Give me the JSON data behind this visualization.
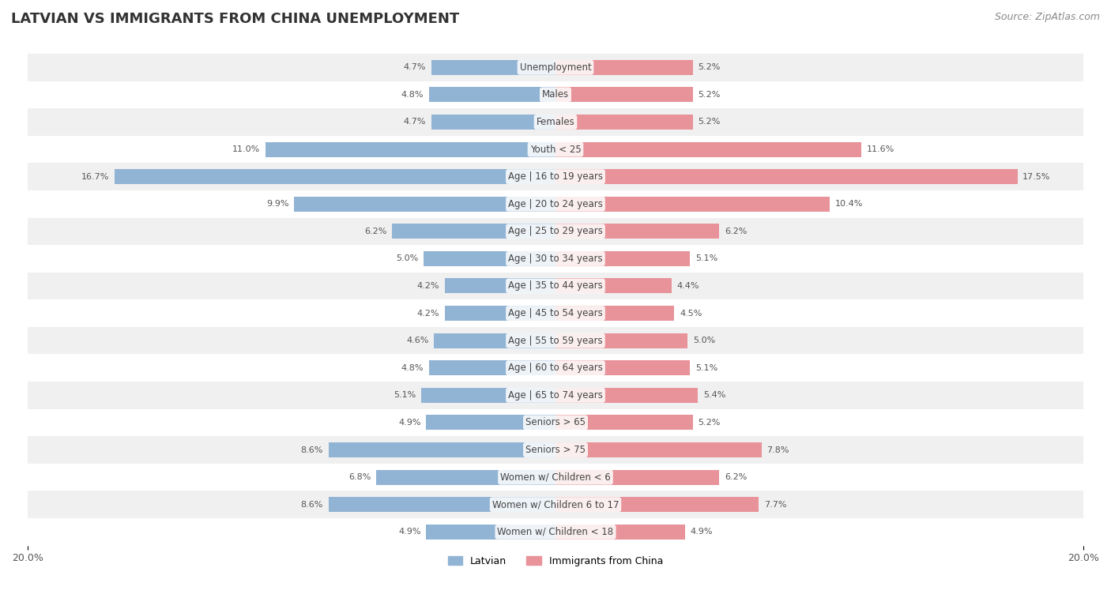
{
  "title": "LATVIAN VS IMMIGRANTS FROM CHINA UNEMPLOYMENT",
  "source": "Source: ZipAtlas.com",
  "categories": [
    "Unemployment",
    "Males",
    "Females",
    "Youth < 25",
    "Age | 16 to 19 years",
    "Age | 20 to 24 years",
    "Age | 25 to 29 years",
    "Age | 30 to 34 years",
    "Age | 35 to 44 years",
    "Age | 45 to 54 years",
    "Age | 55 to 59 years",
    "Age | 60 to 64 years",
    "Age | 65 to 74 years",
    "Seniors > 65",
    "Seniors > 75",
    "Women w/ Children < 6",
    "Women w/ Children 6 to 17",
    "Women w/ Children < 18"
  ],
  "latvian": [
    4.7,
    4.8,
    4.7,
    11.0,
    16.7,
    9.9,
    6.2,
    5.0,
    4.2,
    4.2,
    4.6,
    4.8,
    5.1,
    4.9,
    8.6,
    6.8,
    8.6,
    4.9
  ],
  "immigrants": [
    5.2,
    5.2,
    5.2,
    11.6,
    17.5,
    10.4,
    6.2,
    5.1,
    4.4,
    4.5,
    5.0,
    5.1,
    5.4,
    5.2,
    7.8,
    6.2,
    7.7,
    4.9
  ],
  "latvian_color": "#92b4d4",
  "immigrant_color": "#e8929a",
  "row_colors": [
    "#f0f0f0",
    "#ffffff"
  ],
  "axis_max": 20.0,
  "title_fontsize": 13,
  "source_fontsize": 9,
  "label_fontsize": 8.5,
  "value_fontsize": 8,
  "legend_latvian": "Latvian",
  "legend_immigrant": "Immigrants from China"
}
